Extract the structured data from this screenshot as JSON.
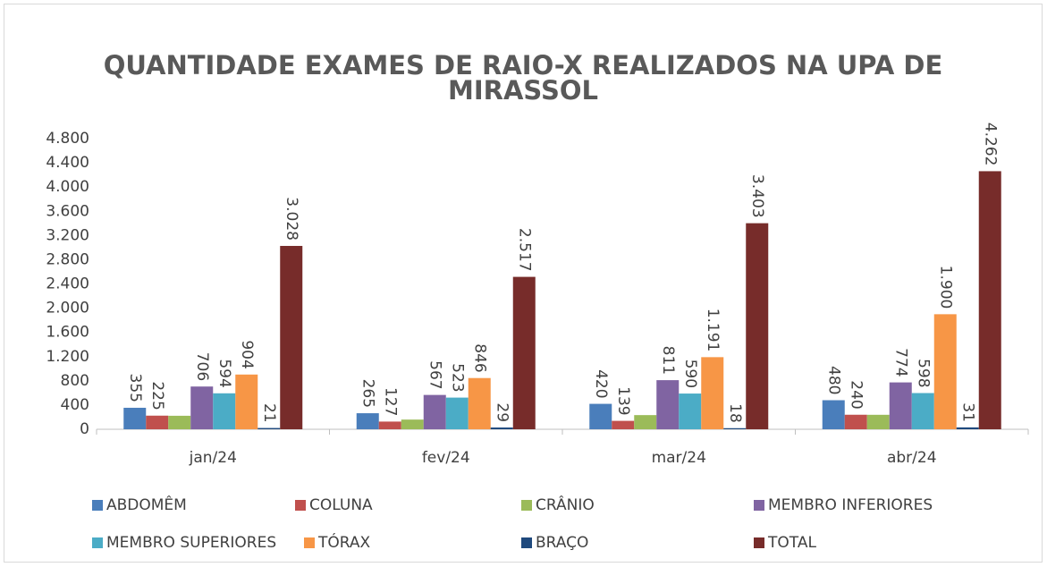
{
  "chart_data": {
    "type": "bar",
    "title": "QUANTIDADE EXAMES DE RAIO-X REALIZADOS NA UPA DE MIRASSOL",
    "categories": [
      "jan/24",
      "fev/24",
      "mar/24",
      "abr/24"
    ],
    "series": [
      {
        "name": "ABDOMÊM",
        "color": "#4a7ebb",
        "values": [
          355,
          265,
          420,
          480
        ]
      },
      {
        "name": "COLUNA",
        "color": "#c0504d",
        "values": [
          225,
          127,
          139,
          240
        ]
      },
      {
        "name": "CRÂNIO",
        "color": "#9bbb59",
        "values": [
          223,
          160,
          234,
          239
        ],
        "show_labels": false
      },
      {
        "name": "MEMBRO INFERIORES",
        "color": "#8064a2",
        "values": [
          706,
          567,
          811,
          774
        ]
      },
      {
        "name": "MEMBRO SUPERIORES",
        "color": "#4bacc6",
        "values": [
          594,
          523,
          590,
          598
        ]
      },
      {
        "name": "TÓRAX",
        "color": "#f79646",
        "values": [
          904,
          846,
          1191,
          1900
        ],
        "value_labels": [
          "904",
          "846",
          "1.191",
          "1.900"
        ]
      },
      {
        "name": "BRAÇO",
        "color": "#1f497d",
        "values": [
          21,
          29,
          18,
          31
        ]
      },
      {
        "name": "TOTAL",
        "color": "#772c2a",
        "values": [
          3028,
          2517,
          3403,
          4262
        ],
        "value_labels": [
          "3.028",
          "2.517",
          "3.403",
          "4.262"
        ]
      }
    ],
    "ylim": [
      0,
      4800
    ],
    "yticks": [
      0,
      400,
      800,
      {
        "value": 1200,
        "label": "1.200"
      },
      {
        "value": 1600,
        "label": "1.600"
      },
      {
        "value": 2000,
        "label": "2.000"
      },
      {
        "value": 2400,
        "label": "2.400"
      },
      {
        "value": 2800,
        "label": "2.800"
      },
      {
        "value": 3200,
        "label": "3.200"
      },
      {
        "value": 3600,
        "label": "3.600"
      },
      {
        "value": 4000,
        "label": "4.000"
      },
      {
        "value": 4400,
        "label": "4.400"
      },
      {
        "value": 4800,
        "label": "4.800"
      }
    ],
    "grid": false,
    "legend": "bottom"
  }
}
